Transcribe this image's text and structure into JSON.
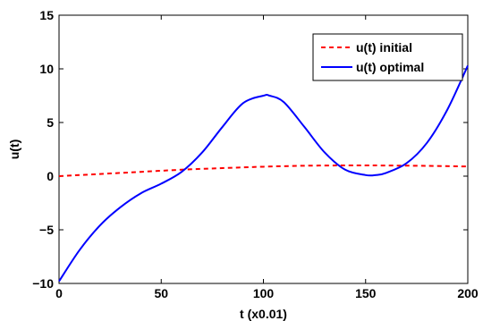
{
  "chart_data": {
    "type": "line",
    "xlabel": "t (x0.01)",
    "ylabel": "u(t)",
    "xlim": [
      0,
      200
    ],
    "ylim": [
      -10,
      15
    ],
    "xticks": [
      0,
      50,
      100,
      150,
      200
    ],
    "yticks": [
      -10,
      -5,
      0,
      5,
      10,
      15
    ],
    "grid": false,
    "legend_position": "top-right",
    "series": [
      {
        "name": "u(t) initial",
        "color": "#ff0000",
        "style": "dashed",
        "x": [
          0,
          20,
          40,
          60,
          80,
          100,
          120,
          140,
          150,
          160,
          180,
          200
        ],
        "y": [
          0.0,
          0.2,
          0.4,
          0.6,
          0.75,
          0.88,
          0.97,
          1.0,
          1.0,
          0.99,
          0.96,
          0.9
        ]
      },
      {
        "name": "u(t) optimal",
        "color": "#0000ff",
        "style": "solid",
        "x": [
          0,
          10,
          20,
          30,
          40,
          50,
          60,
          70,
          80,
          90,
          100,
          103,
          110,
          120,
          130,
          140,
          150,
          155,
          160,
          170,
          180,
          190,
          200
        ],
        "y": [
          -9.8,
          -6.9,
          -4.6,
          -2.9,
          -1.6,
          -0.7,
          0.4,
          2.2,
          4.6,
          6.8,
          7.5,
          7.5,
          6.9,
          4.6,
          2.2,
          0.6,
          0.1,
          0.1,
          0.3,
          1.2,
          3.1,
          6.2,
          10.3
        ]
      }
    ]
  }
}
